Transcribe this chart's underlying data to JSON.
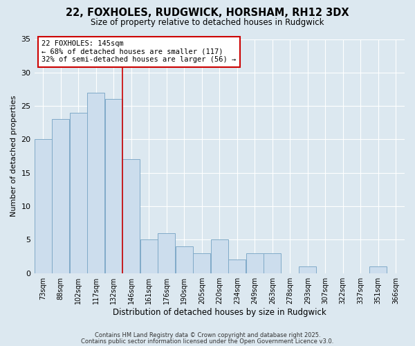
{
  "title1": "22, FOXHOLES, RUDGWICK, HORSHAM, RH12 3DX",
  "title2": "Size of property relative to detached houses in Rudgwick",
  "xlabel": "Distribution of detached houses by size in Rudgwick",
  "ylabel": "Number of detached properties",
  "bin_labels": [
    "73sqm",
    "88sqm",
    "102sqm",
    "117sqm",
    "132sqm",
    "146sqm",
    "161sqm",
    "176sqm",
    "190sqm",
    "205sqm",
    "220sqm",
    "234sqm",
    "249sqm",
    "263sqm",
    "278sqm",
    "293sqm",
    "307sqm",
    "322sqm",
    "337sqm",
    "351sqm",
    "366sqm"
  ],
  "bar_values": [
    20,
    23,
    24,
    27,
    26,
    17,
    5,
    6,
    4,
    3,
    5,
    2,
    3,
    3,
    0,
    1,
    0,
    0,
    0,
    1,
    0
  ],
  "bar_color": "#ccdded",
  "bar_edge_color": "#80aac8",
  "vline_color": "#cc0000",
  "annotation_title": "22 FOXHOLES: 145sqm",
  "annotation_line2": "← 68% of detached houses are smaller (117)",
  "annotation_line3": "32% of semi-detached houses are larger (56) →",
  "annotation_box_color": "#ffffff",
  "annotation_box_edge": "#cc0000",
  "ylim": [
    0,
    35
  ],
  "yticks": [
    0,
    5,
    10,
    15,
    20,
    25,
    30,
    35
  ],
  "footer1": "Contains HM Land Registry data © Crown copyright and database right 2025.",
  "footer2": "Contains public sector information licensed under the Open Government Licence v3.0.",
  "bg_color": "#dce8f0"
}
